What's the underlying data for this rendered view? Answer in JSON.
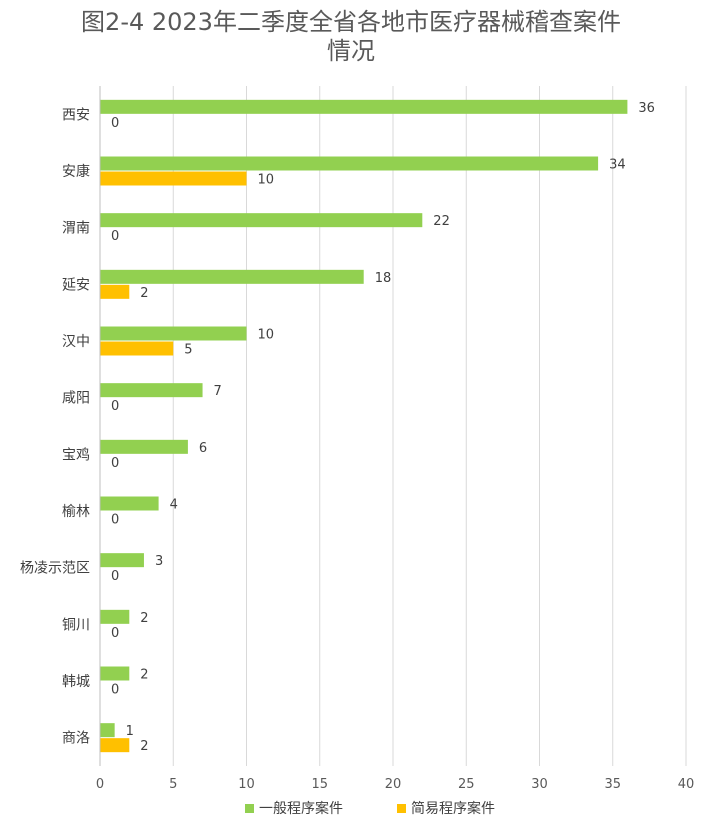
{
  "chart_data": {
    "type": "bar",
    "orientation": "horizontal",
    "title": "图2-4 2023年二季度全省各地市医疗器械稽查案件",
    "subtitle": "情况",
    "categories": [
      "西安",
      "安康",
      "渭南",
      "延安",
      "汉中",
      "咸阳",
      "宝鸡",
      "榆林",
      "杨凌示范区",
      "铜川",
      "韩城",
      "商洛"
    ],
    "series": [
      {
        "name": "一般程序案件",
        "color": "#92d050",
        "values": [
          36,
          34,
          22,
          18,
          10,
          7,
          6,
          4,
          3,
          2,
          2,
          1
        ]
      },
      {
        "name": "简易程序案件",
        "color": "#ffc000",
        "values": [
          0,
          10,
          0,
          2,
          5,
          0,
          0,
          0,
          0,
          0,
          0,
          2
        ]
      }
    ],
    "xlim": [
      0,
      40
    ],
    "xticks": [
      "0",
      "5",
      "10",
      "15",
      "20",
      "25",
      "30",
      "35",
      "40"
    ],
    "grid": true,
    "legend_position": "bottom"
  }
}
